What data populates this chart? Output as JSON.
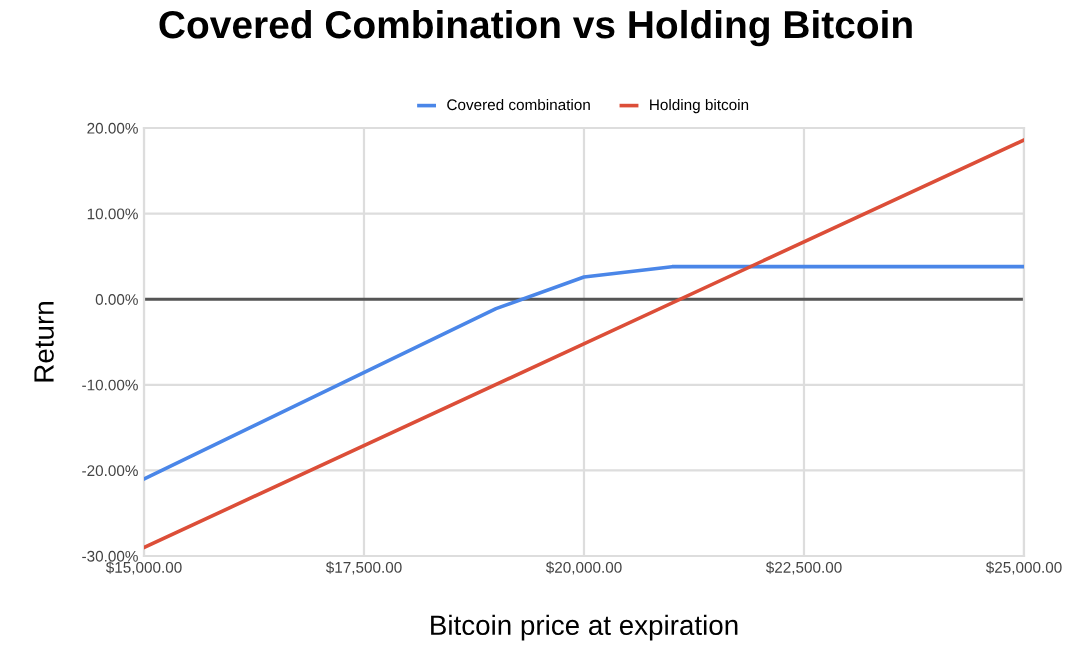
{
  "chart_data": {
    "type": "line",
    "title": "Covered Combination vs Holding Bitcoin",
    "xlabel": "Bitcoin price at expiration",
    "ylabel": "Return",
    "series": [
      {
        "name": "Covered combination",
        "color": "#4a86e8",
        "x": [
          15000,
          19000,
          20000,
          21000,
          25000
        ],
        "values": [
          -21,
          -1.1,
          2.6,
          3.8,
          3.8
        ]
      },
      {
        "name": "Holding bitcoin",
        "color": "#dc4e38",
        "x": [
          15000,
          25000
        ],
        "values": [
          -29,
          18.6
        ]
      }
    ],
    "xlim": [
      15000,
      25000
    ],
    "xticks": [
      {
        "value": 15000,
        "label": "$15,000.00"
      },
      {
        "value": 17500,
        "label": "$17,500.00"
      },
      {
        "value": 20000,
        "label": "$20,000.00"
      },
      {
        "value": 22500,
        "label": "$22,500.00"
      },
      {
        "value": 25000,
        "label": "$25,000.00"
      }
    ],
    "ylim": [
      -30,
      20
    ],
    "yticks": [
      {
        "value": -30,
        "label": "-30.00%"
      },
      {
        "value": -20,
        "label": "-20.00%"
      },
      {
        "value": -10,
        "label": "-10.00%"
      },
      {
        "value": 0,
        "label": "0.00%"
      },
      {
        "value": 10,
        "label": "10.00%"
      },
      {
        "value": 20,
        "label": "20.00%"
      }
    ],
    "ref_lines": [
      {
        "axis": "y",
        "value": 0,
        "color": "#555555"
      }
    ],
    "grid": true,
    "legend": "top",
    "marker": "none",
    "line_style": "solid"
  }
}
